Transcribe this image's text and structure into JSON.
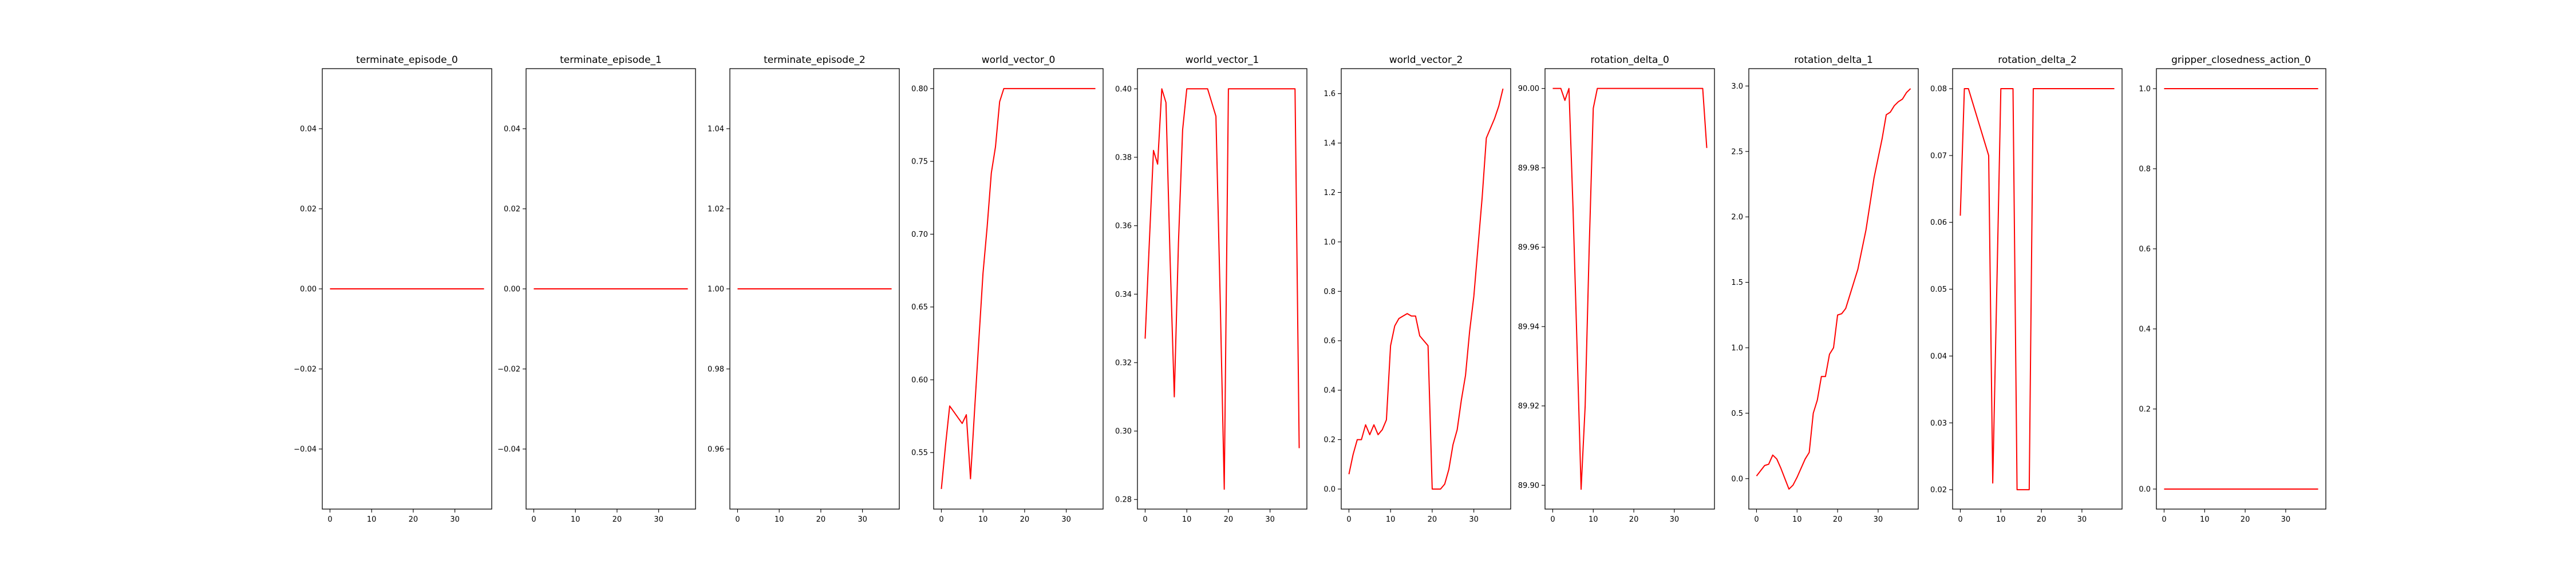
{
  "chart_data": [
    {
      "type": "line",
      "title": "terminate_episode_0",
      "x": [
        0,
        37
      ],
      "series": [
        {
          "values": [
            0.0,
            0.0
          ],
          "color": "#ff0000"
        }
      ],
      "xlim": [
        -1.85,
        38.85
      ],
      "ylim": [
        -0.055,
        0.055
      ],
      "xticks": [
        0,
        10,
        20,
        30
      ],
      "yticks": [
        -0.04,
        -0.02,
        0.0,
        0.02,
        0.04
      ],
      "ytick_labels": [
        "−0.04",
        "−0.02",
        "0.00",
        "0.02",
        "0.04"
      ],
      "grid": false
    },
    {
      "type": "line",
      "title": "terminate_episode_1",
      "x": [
        0,
        37
      ],
      "series": [
        {
          "values": [
            0.0,
            0.0
          ],
          "color": "#ff0000"
        }
      ],
      "xlim": [
        -1.85,
        38.85
      ],
      "ylim": [
        -0.055,
        0.055
      ],
      "xticks": [
        0,
        10,
        20,
        30
      ],
      "yticks": [
        -0.04,
        -0.02,
        0.0,
        0.02,
        0.04
      ],
      "ytick_labels": [
        "−0.04",
        "−0.02",
        "0.00",
        "0.02",
        "0.04"
      ],
      "grid": false
    },
    {
      "type": "line",
      "title": "terminate_episode_2",
      "x": [
        0,
        37
      ],
      "series": [
        {
          "values": [
            1.0,
            1.0
          ],
          "color": "#ff0000"
        }
      ],
      "xlim": [
        -1.85,
        38.85
      ],
      "ylim": [
        0.945,
        1.055
      ],
      "xticks": [
        0,
        10,
        20,
        30
      ],
      "yticks": [
        0.96,
        0.98,
        1.0,
        1.02,
        1.04
      ],
      "ytick_labels": [
        "0.96",
        "0.98",
        "1.00",
        "1.02",
        "1.04"
      ],
      "grid": false
    },
    {
      "type": "line",
      "title": "world_vector_0",
      "x": [
        0,
        1,
        2,
        3,
        4,
        5,
        6,
        7,
        8,
        9,
        10,
        11,
        12,
        13,
        14,
        15,
        16,
        37
      ],
      "series": [
        {
          "values": [
            0.525,
            0.555,
            0.582,
            0.578,
            0.574,
            0.57,
            0.576,
            0.532,
            0.58,
            0.627,
            0.673,
            0.705,
            0.742,
            0.76,
            0.791,
            0.8,
            0.8,
            0.8
          ],
          "color": "#ff0000"
        }
      ],
      "xlim": [
        -1.85,
        38.85
      ],
      "ylim": [
        0.5112,
        0.8137
      ],
      "xticks": [
        0,
        10,
        20,
        30
      ],
      "yticks": [
        0.55,
        0.6,
        0.65,
        0.7,
        0.75,
        0.8
      ],
      "ytick_labels": [
        "0.55",
        "0.60",
        "0.65",
        "0.70",
        "0.75",
        "0.80"
      ],
      "grid": false
    },
    {
      "type": "line",
      "title": "world_vector_1",
      "x": [
        0,
        1,
        2,
        3,
        4,
        5,
        6,
        7,
        8,
        9,
        10,
        11,
        12,
        13,
        14,
        15,
        16,
        17,
        18,
        19,
        20,
        21,
        22,
        23,
        24,
        25,
        26,
        27,
        28,
        29,
        30,
        31,
        32,
        33,
        34,
        35,
        36,
        37
      ],
      "series": [
        {
          "values": [
            0.327,
            0.355,
            0.382,
            0.378,
            0.4,
            0.396,
            0.35,
            0.31,
            0.355,
            0.388,
            0.4,
            0.4,
            0.4,
            0.4,
            0.4,
            0.4,
            0.396,
            0.392,
            0.34,
            0.283,
            0.4,
            0.4,
            0.4,
            0.4,
            0.4,
            0.4,
            0.4,
            0.4,
            0.4,
            0.4,
            0.4,
            0.4,
            0.4,
            0.4,
            0.4,
            0.4,
            0.4,
            0.295
          ],
          "color": "#ff0000"
        }
      ],
      "xlim": [
        -1.85,
        38.85
      ],
      "ylim": [
        0.2772,
        0.4059
      ],
      "xticks": [
        0,
        10,
        20,
        30
      ],
      "yticks": [
        0.28,
        0.3,
        0.32,
        0.34,
        0.36,
        0.38,
        0.4
      ],
      "ytick_labels": [
        "0.28",
        "0.30",
        "0.32",
        "0.34",
        "0.36",
        "0.38",
        "0.40"
      ],
      "grid": false
    },
    {
      "type": "line",
      "title": "world_vector_2",
      "x": [
        0,
        1,
        2,
        3,
        4,
        5,
        6,
        7,
        8,
        9,
        10,
        11,
        12,
        13,
        14,
        15,
        16,
        17,
        18,
        19,
        20,
        21,
        22,
        23,
        24,
        25,
        26,
        27,
        28,
        29,
        30,
        31,
        32,
        33,
        34,
        35,
        36,
        37
      ],
      "series": [
        {
          "values": [
            0.06,
            0.14,
            0.2,
            0.2,
            0.26,
            0.22,
            0.26,
            0.22,
            0.24,
            0.28,
            0.58,
            0.66,
            0.69,
            0.7,
            0.71,
            0.7,
            0.7,
            0.62,
            0.6,
            0.58,
            0.0,
            0.0,
            0.0,
            0.02,
            0.08,
            0.18,
            0.24,
            0.36,
            0.46,
            0.64,
            0.78,
            0.98,
            1.18,
            1.42,
            1.46,
            1.5,
            1.55,
            1.62
          ],
          "color": "#ff0000"
        }
      ],
      "xlim": [
        -1.85,
        38.85
      ],
      "ylim": [
        -0.081,
        1.701
      ],
      "xticks": [
        0,
        10,
        20,
        30
      ],
      "yticks": [
        0.0,
        0.2,
        0.4,
        0.6,
        0.8,
        1.0,
        1.2,
        1.4,
        1.6
      ],
      "ytick_labels": [
        "0.0",
        "0.2",
        "0.4",
        "0.6",
        "0.8",
        "1.0",
        "1.2",
        "1.4",
        "1.6"
      ],
      "grid": false
    },
    {
      "type": "line",
      "title": "rotation_delta_0",
      "x": [
        0,
        1,
        2,
        3,
        4,
        5,
        6,
        7,
        8,
        9,
        10,
        11,
        12,
        13,
        37,
        38
      ],
      "series": [
        {
          "values": [
            90.0,
            90.0,
            90.0,
            89.997,
            90.0,
            89.97,
            89.935,
            89.899,
            89.92,
            89.96,
            89.995,
            90.0,
            90.0,
            90.0,
            90.0,
            89.985
          ],
          "color": "#ff0000"
        }
      ],
      "xlim": [
        -1.9,
        39.9
      ],
      "ylim": [
        89.894,
        90.005
      ],
      "xticks": [
        0,
        10,
        20,
        30
      ],
      "yticks": [
        89.9,
        89.92,
        89.94,
        89.96,
        89.98,
        90.0
      ],
      "ytick_labels": [
        "89.90",
        "89.92",
        "89.94",
        "89.96",
        "89.98",
        "90.00"
      ],
      "grid": false
    },
    {
      "type": "line",
      "title": "rotation_delta_1",
      "x": [
        0,
        1,
        2,
        3,
        4,
        5,
        6,
        7,
        8,
        9,
        10,
        11,
        12,
        13,
        14,
        15,
        16,
        17,
        18,
        19,
        20,
        21,
        22,
        23,
        24,
        25,
        26,
        27,
        28,
        29,
        30,
        31,
        32,
        33,
        34,
        35,
        36,
        37,
        38
      ],
      "series": [
        {
          "values": [
            0.02,
            0.06,
            0.1,
            0.11,
            0.18,
            0.15,
            0.08,
            0.0,
            -0.08,
            -0.05,
            0.01,
            0.08,
            0.15,
            0.2,
            0.5,
            0.6,
            0.78,
            0.78,
            0.95,
            1.0,
            1.25,
            1.26,
            1.3,
            1.4,
            1.5,
            1.6,
            1.75,
            1.9,
            2.1,
            2.3,
            2.45,
            2.6,
            2.78,
            2.8,
            2.85,
            2.88,
            2.9,
            2.95,
            2.98
          ],
          "color": "#ff0000"
        }
      ],
      "xlim": [
        -1.9,
        39.9
      ],
      "ylim": [
        -0.2327,
        3.1327
      ],
      "xticks": [
        0,
        10,
        20,
        30
      ],
      "yticks": [
        0.0,
        0.5,
        1.0,
        1.5,
        2.0,
        2.5,
        3.0
      ],
      "ytick_labels": [
        "0.0",
        "0.5",
        "1.0",
        "1.5",
        "2.0",
        "2.5",
        "3.0"
      ],
      "grid": false
    },
    {
      "type": "line",
      "title": "rotation_delta_2",
      "x": [
        0,
        1,
        2,
        3,
        4,
        5,
        6,
        7,
        8,
        9,
        10,
        11,
        12,
        13,
        14,
        15,
        16,
        17,
        18,
        19,
        20,
        21,
        22,
        23,
        24,
        25,
        26,
        27,
        28,
        29,
        30,
        31,
        32,
        33,
        34,
        35,
        36,
        37,
        38
      ],
      "series": [
        {
          "values": [
            0.061,
            0.08,
            0.08,
            0.078,
            0.076,
            0.074,
            0.072,
            0.07,
            0.021,
            0.05,
            0.08,
            0.08,
            0.08,
            0.08,
            0.02,
            0.02,
            0.02,
            0.02,
            0.08,
            0.08,
            0.08,
            0.08,
            0.08,
            0.08,
            0.08,
            0.08,
            0.08,
            0.08,
            0.08,
            0.08,
            0.08,
            0.08,
            0.08,
            0.08,
            0.08,
            0.08,
            0.08,
            0.08,
            0.08
          ],
          "color": "#ff0000"
        }
      ],
      "xlim": [
        -1.9,
        39.9
      ],
      "ylim": [
        0.0171,
        0.083
      ],
      "xticks": [
        0,
        10,
        20,
        30
      ],
      "yticks": [
        0.02,
        0.03,
        0.04,
        0.05,
        0.06,
        0.07,
        0.08
      ],
      "ytick_labels": [
        "0.02",
        "0.03",
        "0.04",
        "0.05",
        "0.06",
        "0.07",
        "0.08"
      ],
      "grid": false
    },
    {
      "type": "line",
      "title": "gripper_closedness_action_0",
      "x": [
        0,
        38
      ],
      "series": [
        {
          "values": [
            1.0,
            1.0
          ],
          "color": "#ff0000"
        },
        {
          "values": [
            0.0,
            0.0
          ],
          "color": "#ff0000"
        }
      ],
      "xlim": [
        -1.9,
        39.9
      ],
      "ylim": [
        -0.05,
        1.05
      ],
      "xticks": [
        0,
        10,
        20,
        30
      ],
      "yticks": [
        0.0,
        0.2,
        0.4,
        0.6,
        0.8,
        1.0
      ],
      "ytick_labels": [
        "0.0",
        "0.2",
        "0.4",
        "0.6",
        "0.8",
        "1.0"
      ],
      "grid": false
    }
  ]
}
